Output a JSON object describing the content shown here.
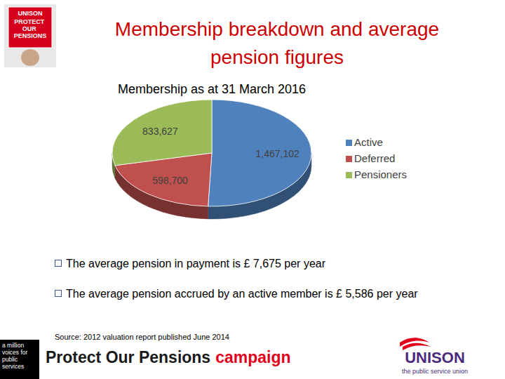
{
  "header": {
    "title": "Membership breakdown and average pension figures"
  },
  "chart_data": {
    "type": "pie",
    "title": "Membership as at 31 March 2016",
    "categories": [
      "Active",
      "Deferred",
      "Pensioners"
    ],
    "values": [
      1467102,
      598700,
      833627
    ],
    "value_labels": [
      "1,467,102",
      "598,700",
      "833,627"
    ],
    "colors": [
      "#4f81bd",
      "#c0504d",
      "#9bbb59"
    ],
    "data_labels": true,
    "legend": "right"
  },
  "bullets": [
    "The average pension in payment is £ 7,675 per year",
    "The average pension accrued by an active member is £ 5,586 per year"
  ],
  "source": "Source: 2012 valuation report published June 2014",
  "footer": {
    "campaign_name": "Protect Our Pensions",
    "campaign_word": "campaign"
  },
  "logos": {
    "placard_org": "UNISON",
    "placard_text": "PROTECT OUR PENSIONS",
    "voices": "a million voices for public services",
    "union_name": "UNISON",
    "union_tagline": "the public service union"
  }
}
